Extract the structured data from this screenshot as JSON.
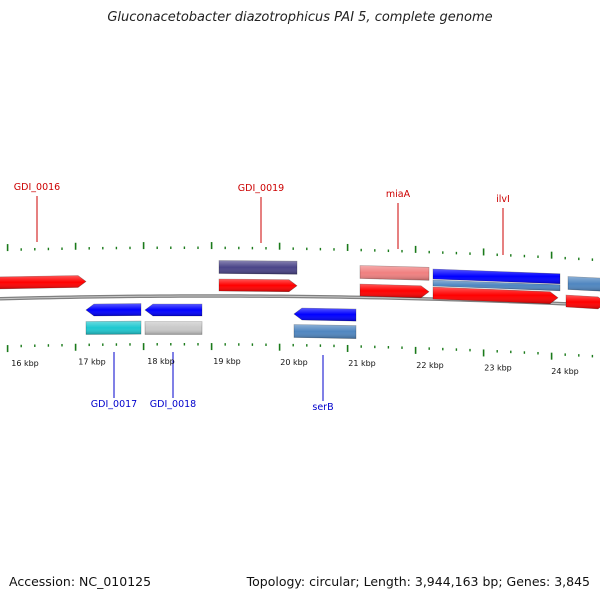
{
  "title": "Gluconacetobacter diazotrophicus PAI 5, complete genome",
  "footer": {
    "accession": "Accession: NC_010125",
    "summary": "Topology: circular; Length: 3,944,163 bp; Genes: 3,845"
  },
  "colors": {
    "label_top": "#cc0000",
    "label_bottom": "#0000cc",
    "tick": "#1a7a1a",
    "backbone": "#808080"
  },
  "ruler": {
    "units": "kbp",
    "tick_labels": [
      "16 kbp",
      "17 kbp",
      "18 kbp",
      "19 kbp",
      "20 kbp",
      "21 kbp",
      "22 kbp",
      "23 kbp",
      "24 kbp"
    ]
  },
  "features": [
    {
      "label": "GDI_0016",
      "strand": "+",
      "color": "#ff0000",
      "track": "gene"
    },
    {
      "label": "GDI_0019",
      "strand": "+",
      "color": "#ff0000",
      "track": "gene"
    },
    {
      "label": "",
      "strand": "+",
      "color": "#4a4488",
      "track": "cds"
    },
    {
      "label": "miaA",
      "strand": "+",
      "color": "#ff0000",
      "track": "gene"
    },
    {
      "label": "",
      "strand": "+",
      "color": "#f08080",
      "track": "cds"
    },
    {
      "label": "ilvI",
      "strand": "+",
      "color": "#ff0000",
      "track": "gene"
    },
    {
      "label": "",
      "strand": "+",
      "color": "#0000ff",
      "track": "cds"
    },
    {
      "label": "",
      "strand": "+",
      "color": "#4f86c0",
      "track": "cds"
    },
    {
      "label": "GDI_0017",
      "strand": "-",
      "color": "#0000ff",
      "track": "gene"
    },
    {
      "label": "",
      "strand": "-",
      "color": "#1ec8d0",
      "track": "cds"
    },
    {
      "label": "GDI_0018",
      "strand": "-",
      "color": "#0000ff",
      "track": "gene"
    },
    {
      "label": "",
      "strand": "-",
      "color": "#c8c8c8",
      "track": "cds"
    },
    {
      "label": "serB",
      "strand": "-",
      "color": "#0000ff",
      "track": "gene"
    },
    {
      "label": "",
      "strand": "-",
      "color": "#4f86c0",
      "track": "cds"
    }
  ]
}
